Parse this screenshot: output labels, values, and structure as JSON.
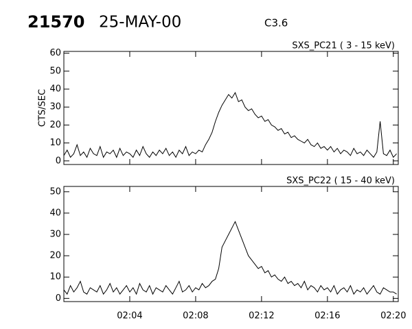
{
  "chart_data": [
    {
      "type": "line",
      "title": "21570",
      "subtitle": "25-MAY-00",
      "annotation": "C3.6",
      "panel_title": "SXS_PC21  (  3 - 15 keV)",
      "ylabel": "CTS/SEC",
      "color": "#000000",
      "x": [
        0,
        0.2,
        0.4,
        0.6,
        0.8,
        1,
        1.2,
        1.4,
        1.6,
        1.8,
        2,
        2.2,
        2.4,
        2.6,
        2.8,
        3,
        3.2,
        3.4,
        3.6,
        3.8,
        4,
        4.2,
        4.4,
        4.6,
        4.8,
        5,
        5.2,
        5.4,
        5.6,
        5.8,
        6,
        6.2,
        6.4,
        6.6,
        6.8,
        7,
        7.2,
        7.4,
        7.6,
        7.8,
        8,
        8.2,
        8.4,
        8.6,
        8.8,
        9,
        9.2,
        9.4,
        9.6,
        9.8,
        10,
        10.2,
        10.4,
        10.6,
        10.8,
        11,
        11.2,
        11.4,
        11.6,
        11.8,
        12,
        12.2,
        12.4,
        12.6,
        12.8,
        13,
        13.2,
        13.4,
        13.6,
        13.8,
        14,
        14.2,
        14.4,
        14.6,
        14.8,
        15,
        15.2,
        15.4,
        15.6,
        15.8,
        16,
        16.2,
        16.4,
        16.6,
        16.8,
        17,
        17.2,
        17.4,
        17.6,
        17.8,
        18,
        18.2,
        18.4,
        18.6,
        18.8,
        19,
        19.2,
        19.4,
        19.6,
        19.8,
        20,
        20.2
      ],
      "values": [
        3,
        6,
        2,
        4,
        9,
        3,
        5,
        2,
        7,
        4,
        3,
        8,
        2,
        5,
        4,
        6,
        2,
        7,
        3,
        5,
        4,
        2,
        6,
        3,
        8,
        4,
        2,
        5,
        3,
        6,
        4,
        7,
        3,
        5,
        2,
        6,
        4,
        8,
        3,
        5,
        4,
        6,
        5,
        9,
        12,
        16,
        22,
        27,
        31,
        34,
        37,
        35,
        38,
        33,
        34,
        30,
        28,
        29,
        26,
        24,
        25,
        22,
        23,
        20,
        19,
        17,
        18,
        15,
        16,
        13,
        14,
        12,
        11,
        10,
        12,
        9,
        8,
        10,
        7,
        8,
        6,
        8,
        5,
        7,
        4,
        6,
        5,
        3,
        7,
        4,
        5,
        3,
        6,
        4,
        2,
        5,
        22,
        4,
        3,
        6,
        2,
        4
      ],
      "xlim": [
        0,
        20.3
      ],
      "ylim": [
        -2,
        61
      ],
      "yticks": [
        0,
        10,
        20,
        30,
        40,
        50,
        60
      ]
    },
    {
      "type": "line",
      "panel_title": "SXS_PC22  ( 15 - 40 keV)",
      "color": "#000000",
      "x": [
        0,
        0.2,
        0.4,
        0.6,
        0.8,
        1,
        1.2,
        1.4,
        1.6,
        1.8,
        2,
        2.2,
        2.4,
        2.6,
        2.8,
        3,
        3.2,
        3.4,
        3.6,
        3.8,
        4,
        4.2,
        4.4,
        4.6,
        4.8,
        5,
        5.2,
        5.4,
        5.6,
        5.8,
        6,
        6.2,
        6.4,
        6.6,
        6.8,
        7,
        7.2,
        7.4,
        7.6,
        7.8,
        8,
        8.2,
        8.4,
        8.6,
        8.8,
        9,
        9.2,
        9.4,
        9.6,
        9.8,
        10,
        10.2,
        10.4,
        10.6,
        10.8,
        11,
        11.2,
        11.4,
        11.6,
        11.8,
        12,
        12.2,
        12.4,
        12.6,
        12.8,
        13,
        13.2,
        13.4,
        13.6,
        13.8,
        14,
        14.2,
        14.4,
        14.6,
        14.8,
        15,
        15.2,
        15.4,
        15.6,
        15.8,
        16,
        16.2,
        16.4,
        16.6,
        16.8,
        17,
        17.2,
        17.4,
        17.6,
        17.8,
        18,
        18.2,
        18.4,
        18.6,
        18.8,
        19,
        19.2,
        19.4,
        19.6,
        19.8,
        20,
        20.2
      ],
      "values": [
        4,
        2,
        6,
        3,
        5,
        8,
        3,
        2,
        5,
        4,
        3,
        6,
        2,
        4,
        7,
        3,
        5,
        2,
        4,
        6,
        3,
        5,
        2,
        7,
        4,
        3,
        6,
        2,
        5,
        4,
        3,
        6,
        4,
        2,
        5,
        8,
        3,
        4,
        6,
        3,
        5,
        4,
        7,
        5,
        6,
        8,
        9,
        14,
        24,
        27,
        30,
        33,
        36,
        32,
        28,
        24,
        20,
        18,
        16,
        14,
        15,
        12,
        13,
        10,
        11,
        9,
        8,
        10,
        7,
        8,
        6,
        7,
        5,
        8,
        4,
        6,
        5,
        3,
        6,
        4,
        5,
        3,
        6,
        2,
        4,
        5,
        3,
        6,
        2,
        4,
        3,
        5,
        2,
        4,
        6,
        3,
        2,
        5,
        4,
        3,
        3,
        2
      ],
      "xlim": [
        0,
        20.3
      ],
      "ylim": [
        -1.5,
        52.5
      ],
      "yticks": [
        0,
        10,
        20,
        30,
        40,
        50
      ],
      "xticks": [
        {
          "value": 4,
          "label": "02:04"
        },
        {
          "value": 8,
          "label": "02:08"
        },
        {
          "value": 12,
          "label": "02:12"
        },
        {
          "value": 16,
          "label": "02:16"
        },
        {
          "value": 20,
          "label": "02:20"
        }
      ]
    }
  ]
}
